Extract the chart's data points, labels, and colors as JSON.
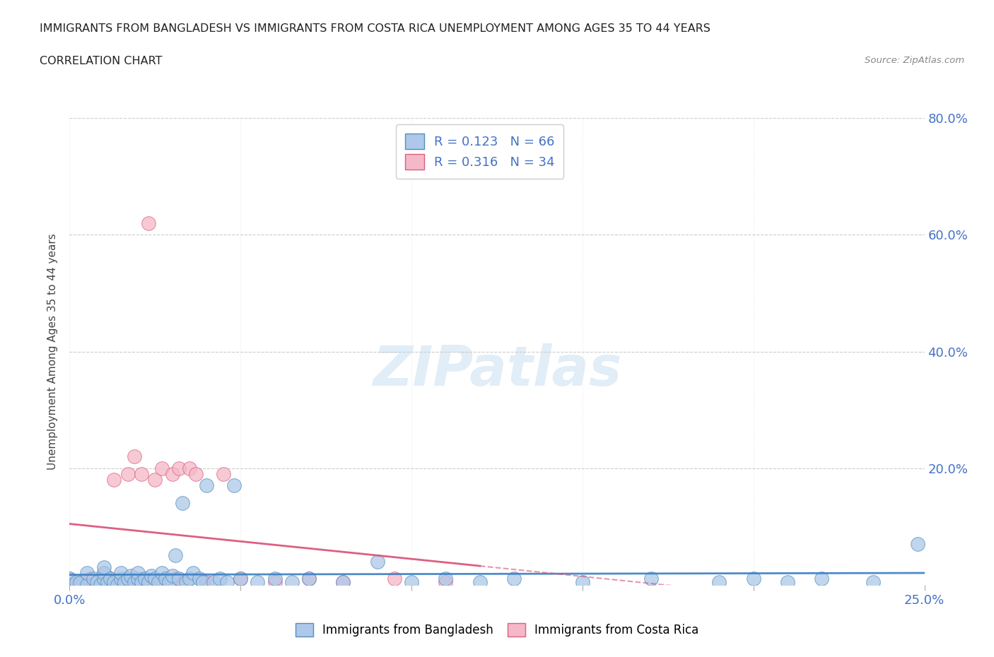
{
  "title_line1": "IMMIGRANTS FROM BANGLADESH VS IMMIGRANTS FROM COSTA RICA UNEMPLOYMENT AMONG AGES 35 TO 44 YEARS",
  "title_line2": "CORRELATION CHART",
  "source_text": "Source: ZipAtlas.com",
  "ylabel": "Unemployment Among Ages 35 to 44 years",
  "xlim": [
    0.0,
    0.25
  ],
  "ylim": [
    0.0,
    0.8
  ],
  "xticks": [
    0.0,
    0.05,
    0.1,
    0.15,
    0.2,
    0.25
  ],
  "yticks": [
    0.0,
    0.2,
    0.4,
    0.6,
    0.8
  ],
  "xtick_labels": [
    "0.0%",
    "",
    "",
    "",
    "",
    "25.0%"
  ],
  "ytick_labels": [
    "",
    "20.0%",
    "40.0%",
    "60.0%",
    "80.0%"
  ],
  "bangladesh_color": "#adc8e8",
  "costa_rica_color": "#f5b8c8",
  "bangladesh_edge": "#4f8fc0",
  "costa_rica_edge": "#d95f7f",
  "trend_bangladesh_color": "#3b7fc4",
  "trend_costa_rica_color": "#d94f75",
  "R_bangladesh": 0.123,
  "N_bangladesh": 66,
  "R_costa_rica": 0.316,
  "N_costa_rica": 34,
  "legend_label_bangladesh": "Immigrants from Bangladesh",
  "legend_label_costa_rica": "Immigrants from Costa Rica",
  "watermark": "ZIPatlas",
  "bangladesh_x": [
    0.0,
    0.001,
    0.002,
    0.003,
    0.005,
    0.005,
    0.007,
    0.008,
    0.009,
    0.01,
    0.01,
    0.01,
    0.011,
    0.012,
    0.013,
    0.014,
    0.015,
    0.015,
    0.016,
    0.017,
    0.018,
    0.019,
    0.02,
    0.02,
    0.021,
    0.022,
    0.023,
    0.024,
    0.025,
    0.026,
    0.027,
    0.028,
    0.029,
    0.03,
    0.031,
    0.032,
    0.033,
    0.034,
    0.035,
    0.036,
    0.038,
    0.039,
    0.04,
    0.042,
    0.044,
    0.046,
    0.048,
    0.05,
    0.055,
    0.06,
    0.065,
    0.07,
    0.08,
    0.09,
    0.1,
    0.11,
    0.12,
    0.13,
    0.15,
    0.17,
    0.19,
    0.2,
    0.21,
    0.22,
    0.235,
    0.248
  ],
  "bangladesh_y": [
    0.01,
    0.0,
    0.005,
    0.003,
    0.0,
    0.02,
    0.01,
    0.005,
    0.0,
    0.01,
    0.02,
    0.03,
    0.005,
    0.01,
    0.005,
    0.0,
    0.01,
    0.02,
    0.005,
    0.01,
    0.015,
    0.005,
    0.01,
    0.02,
    0.005,
    0.01,
    0.005,
    0.015,
    0.01,
    0.005,
    0.02,
    0.01,
    0.005,
    0.015,
    0.05,
    0.01,
    0.14,
    0.005,
    0.01,
    0.02,
    0.01,
    0.005,
    0.17,
    0.005,
    0.01,
    0.005,
    0.17,
    0.01,
    0.005,
    0.01,
    0.005,
    0.01,
    0.005,
    0.04,
    0.005,
    0.01,
    0.005,
    0.01,
    0.005,
    0.01,
    0.005,
    0.01,
    0.005,
    0.01,
    0.005,
    0.07
  ],
  "costa_rica_x": [
    0.0,
    0.002,
    0.004,
    0.006,
    0.008,
    0.01,
    0.012,
    0.013,
    0.015,
    0.017,
    0.018,
    0.019,
    0.02,
    0.021,
    0.022,
    0.023,
    0.025,
    0.026,
    0.027,
    0.028,
    0.03,
    0.031,
    0.032,
    0.033,
    0.035,
    0.037,
    0.04,
    0.045,
    0.05,
    0.06,
    0.07,
    0.08,
    0.095,
    0.11
  ],
  "costa_rica_y": [
    0.01,
    0.0,
    0.005,
    0.01,
    0.0,
    0.02,
    0.01,
    0.18,
    0.005,
    0.19,
    0.01,
    0.22,
    0.0,
    0.19,
    0.01,
    0.62,
    0.18,
    0.005,
    0.2,
    0.01,
    0.19,
    0.01,
    0.2,
    0.005,
    0.2,
    0.19,
    0.005,
    0.19,
    0.01,
    0.005,
    0.01,
    0.005,
    0.01,
    0.005
  ]
}
